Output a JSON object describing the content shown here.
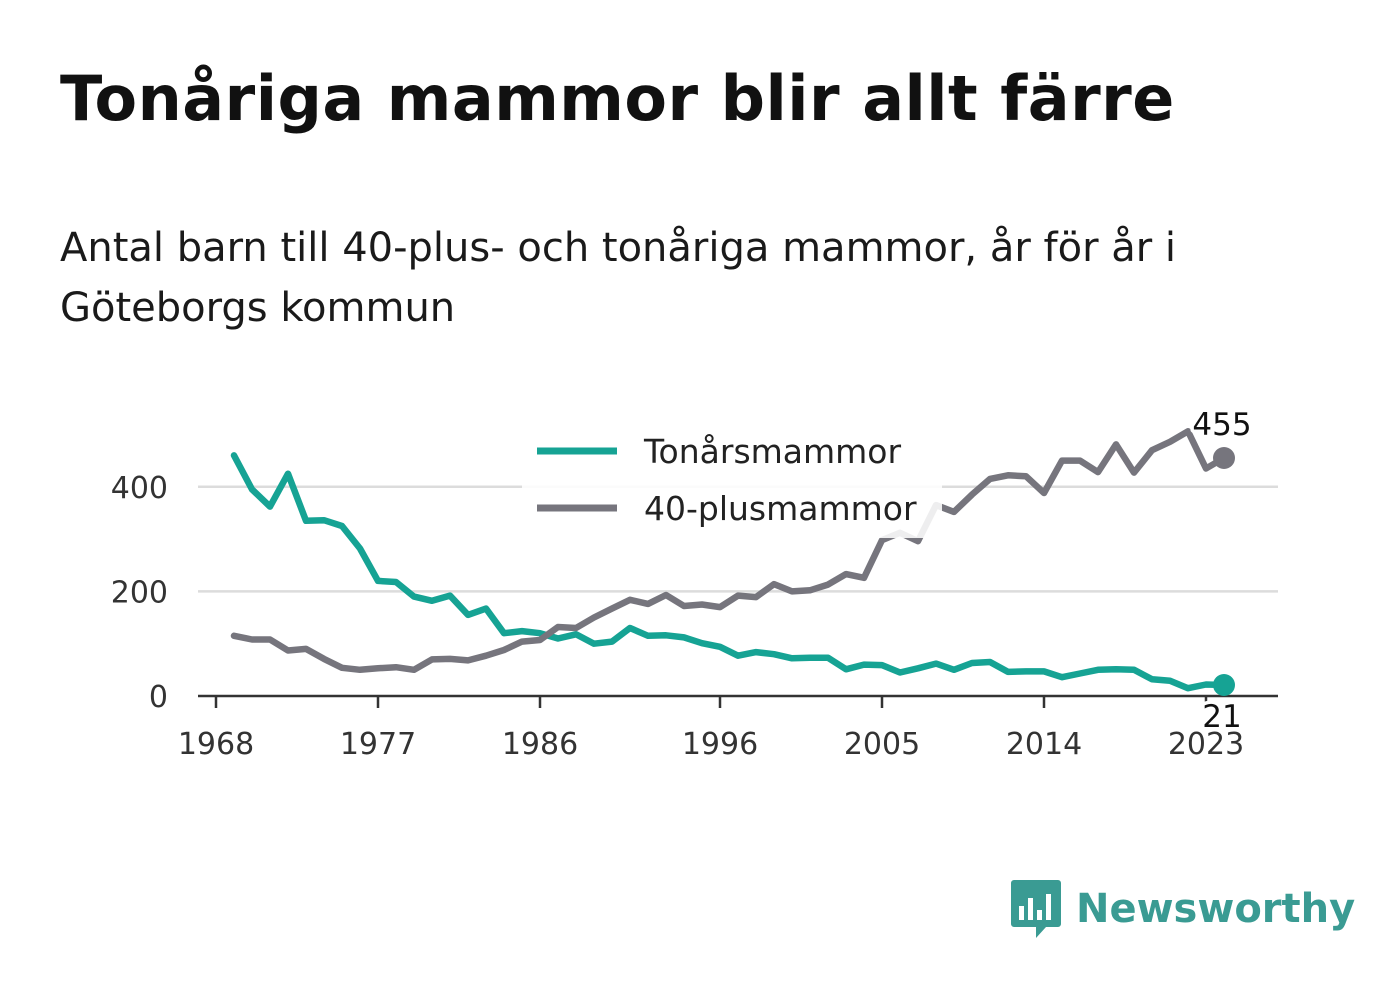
{
  "title": "Tonåriga mammor blir allt färre",
  "subtitle": "Antal barn till 40-plus- och tonåriga mammor, år för år i Göteborgs kommun",
  "brand": {
    "name": "Newsworthy",
    "icon": "bar-chart-speech-bubble-icon",
    "color": "#3a9b93"
  },
  "chart_data": {
    "type": "line",
    "x": [
      1969,
      1970,
      1971,
      1972,
      1973,
      1974,
      1975,
      1976,
      1977,
      1978,
      1979,
      1980,
      1981,
      1982,
      1983,
      1984,
      1985,
      1986,
      1987,
      1988,
      1989,
      1990,
      1991,
      1992,
      1993,
      1994,
      1995,
      1996,
      1997,
      1998,
      1999,
      2000,
      2001,
      2002,
      2003,
      2004,
      2005,
      2006,
      2007,
      2008,
      2009,
      2010,
      2011,
      2012,
      2013,
      2014,
      2015,
      2016,
      2017,
      2018,
      2019,
      2020,
      2021,
      2022,
      2023,
      2024
    ],
    "series": [
      {
        "name": "Tonårsmammor",
        "color": "#16a394",
        "values": [
          460,
          395,
          362,
          425,
          335,
          336,
          325,
          282,
          220,
          218,
          190,
          182,
          192,
          155,
          167,
          120,
          124,
          120,
          110,
          118,
          100,
          104,
          130,
          115,
          116,
          112,
          101,
          94,
          77,
          84,
          80,
          72,
          73,
          73,
          51,
          60,
          59,
          45,
          53,
          62,
          50,
          63,
          65,
          46,
          47,
          47,
          36,
          43,
          50,
          51,
          50,
          32,
          29,
          15,
          22,
          21
        ]
      },
      {
        "name": "40-plusmammor",
        "color": "#76757d",
        "values": [
          115,
          108,
          108,
          87,
          90,
          71,
          54,
          50,
          53,
          55,
          50,
          70,
          71,
          68,
          77,
          88,
          104,
          107,
          132,
          130,
          150,
          167,
          184,
          176,
          193,
          172,
          175,
          170,
          192,
          189,
          214,
          200,
          202,
          213,
          233,
          226,
          298,
          312,
          296,
          365,
          352,
          385,
          415,
          422,
          420,
          388,
          450,
          450,
          428,
          481,
          427,
          470,
          486,
          506,
          435,
          455
        ]
      }
    ],
    "xticks": [
      1968,
      1977,
      1986,
      1996,
      2005,
      2014,
      2023
    ],
    "yticks": [
      0,
      200,
      400
    ],
    "xlim": [
      1967,
      2027
    ],
    "ylim": [
      0,
      520
    ],
    "grid": true,
    "legend": "top-center",
    "end_labels": {
      "Tonårsmammor": "21",
      "40-plusmammor": "455"
    }
  }
}
